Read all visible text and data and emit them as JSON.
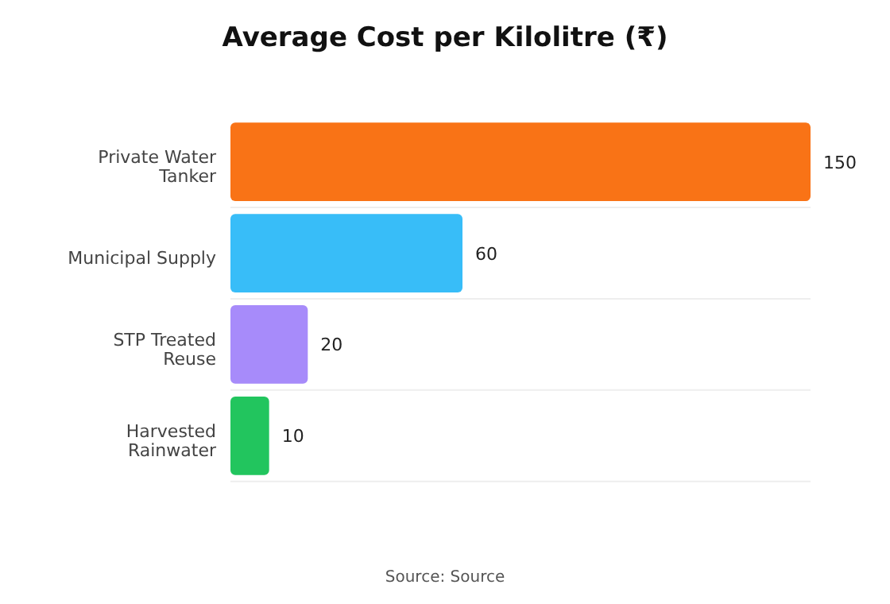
{
  "chart_data": {
    "type": "bar",
    "orientation": "horizontal",
    "title": "Average Cost per Kilolitre (₹)",
    "categories": [
      "Private Water Tanker",
      "Municipal Supply",
      "STP Treated Reuse",
      "Harvested Rainwater"
    ],
    "values": [
      150,
      60,
      20,
      10
    ],
    "colors": [
      "#f97316",
      "#38bdf8",
      "#a78bfa",
      "#22c55e"
    ],
    "xlim": [
      0,
      150
    ],
    "data_labels": true,
    "grid": "y",
    "tick_labels": "y",
    "annotations": [
      "Source: Source"
    ]
  }
}
